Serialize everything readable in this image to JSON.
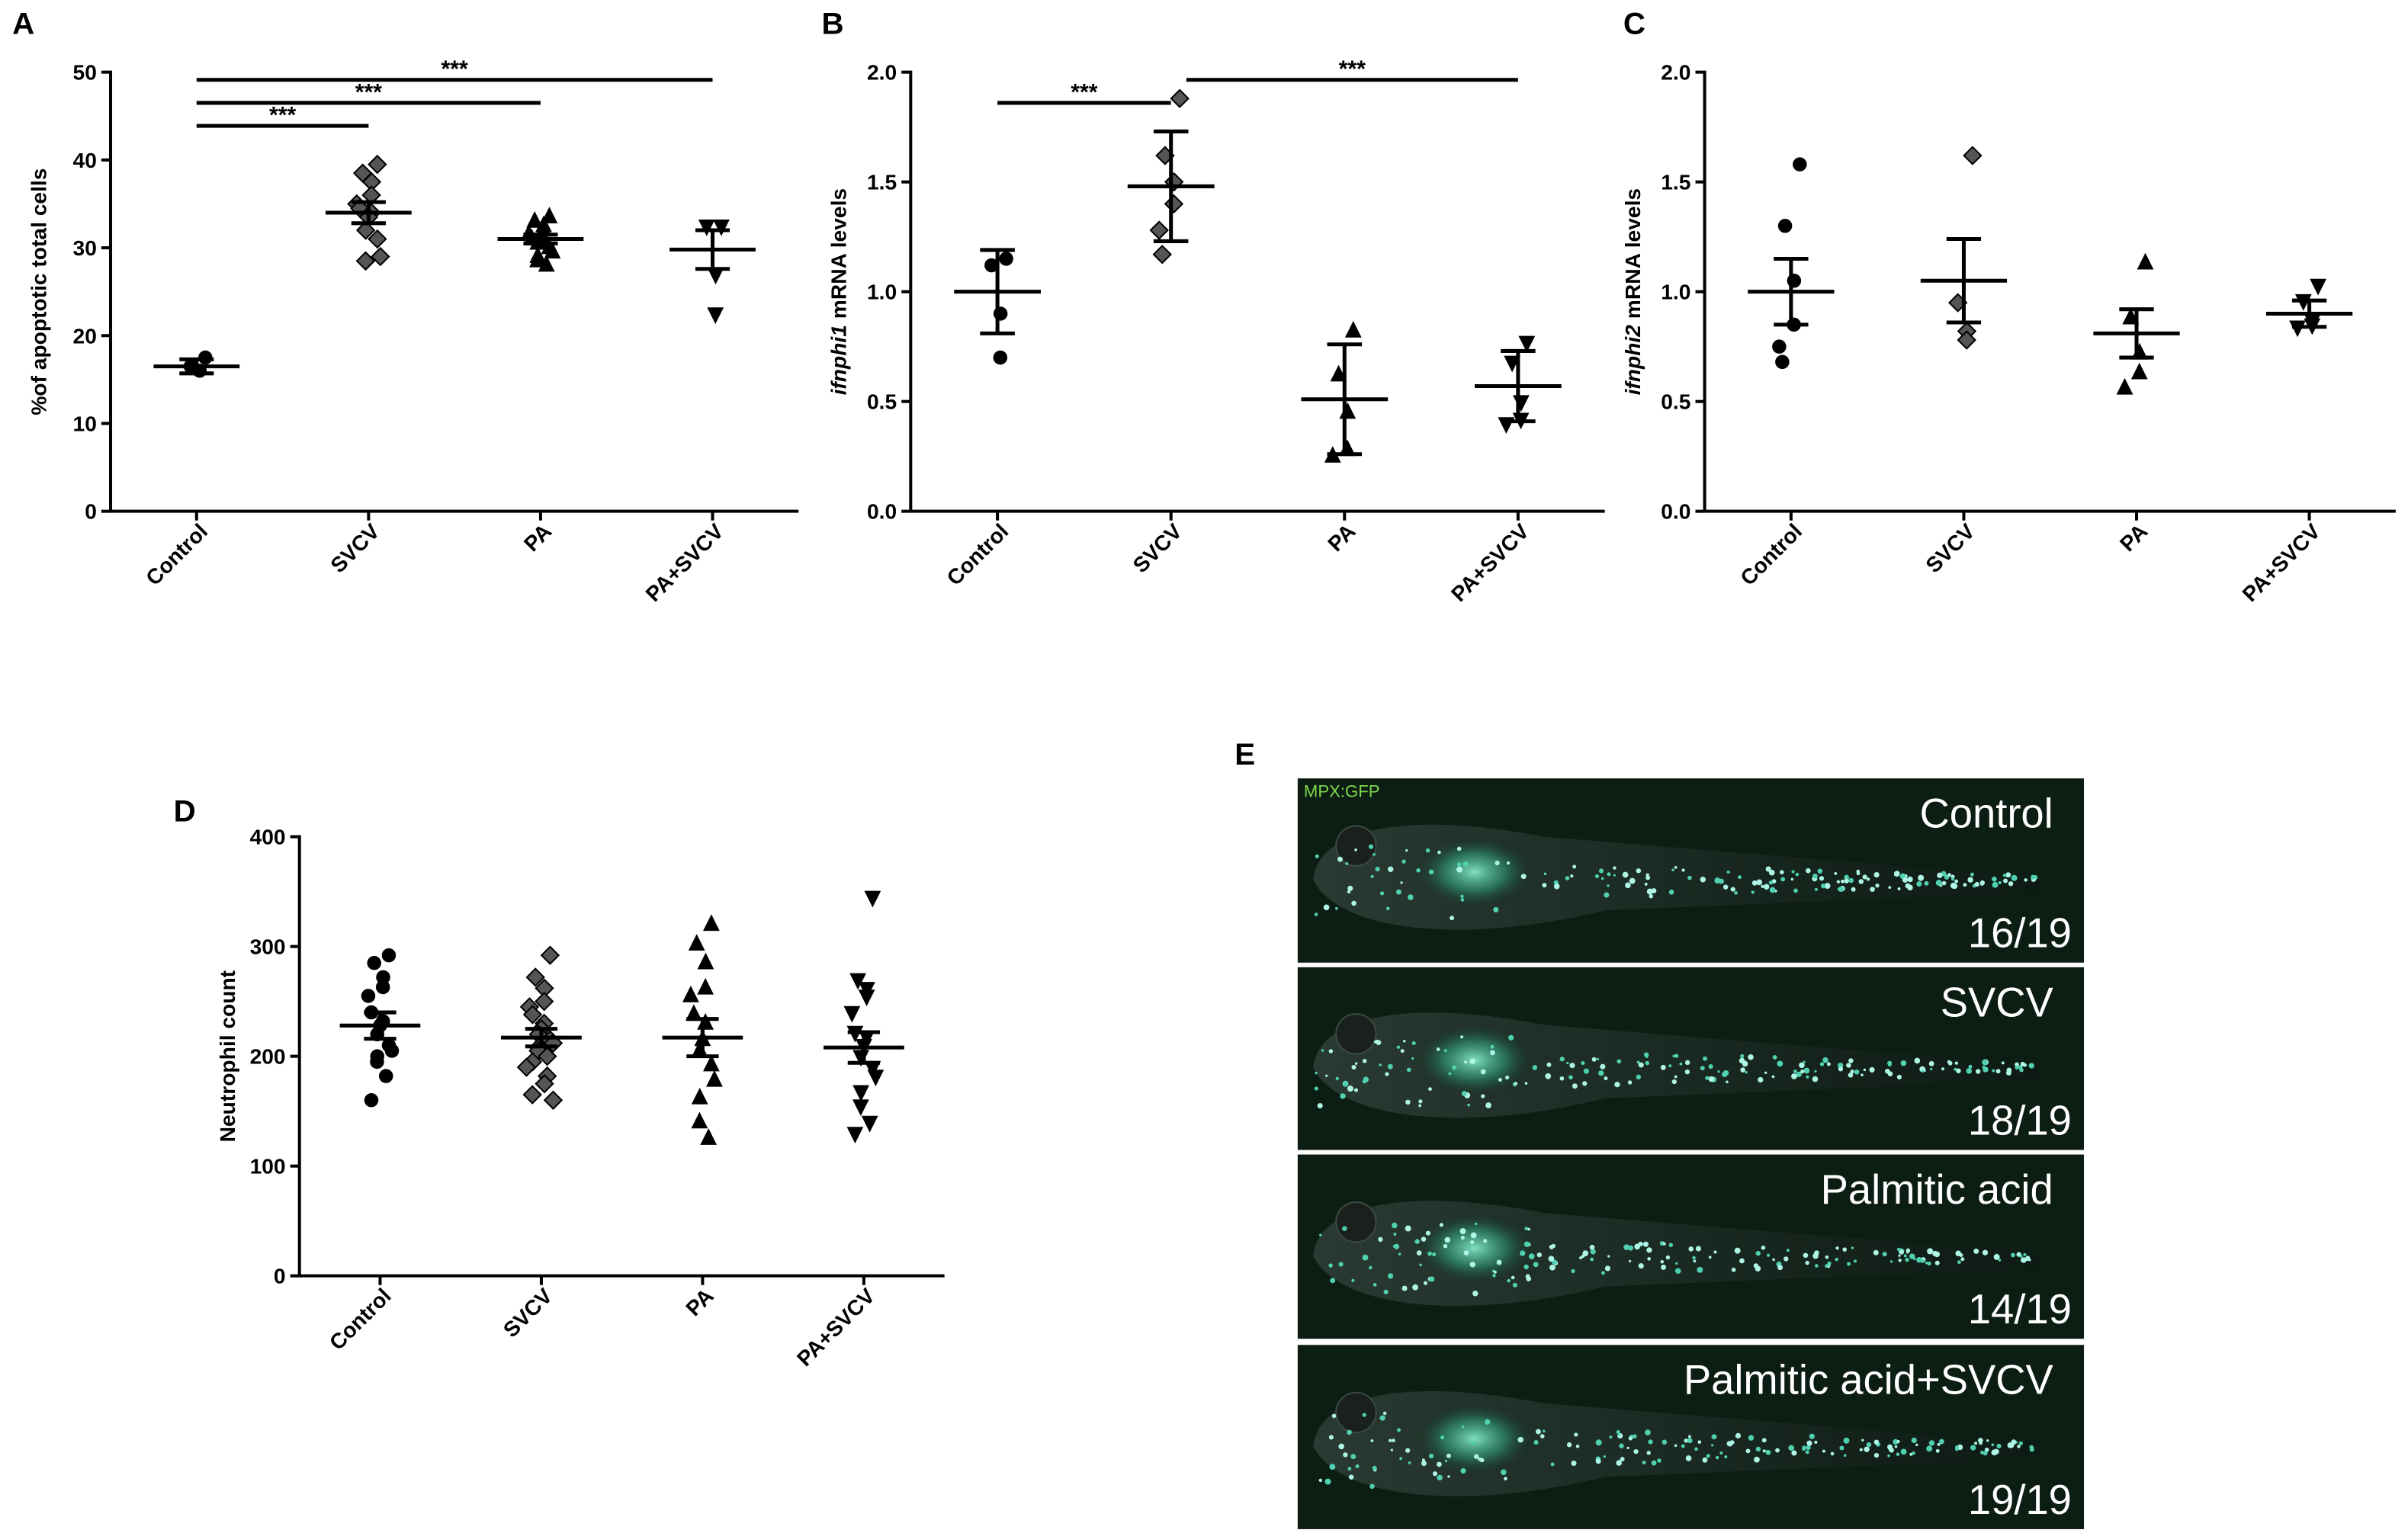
{
  "chart_data": [
    {
      "type": "dot",
      "panel": "A",
      "ylabel": "%of apoptotic total cells",
      "categories": [
        "Control",
        "SVCV",
        "PA",
        "PA+SVCV"
      ],
      "markers": [
        "circle",
        "diamond",
        "triangle",
        "triangle-down"
      ],
      "points": [
        [
          17.5,
          16.5,
          16
        ],
        [
          39.5,
          38.5,
          37.5,
          36,
          35,
          34.5,
          34,
          33.5,
          32,
          31,
          29,
          28.5,
          28.5
        ],
        [
          33.5,
          33,
          32.5,
          32,
          31.5,
          31,
          31,
          30.5,
          30.5,
          30,
          29.5,
          29,
          28.5,
          28
        ],
        [
          32.5,
          32.5,
          27,
          22.5
        ]
      ],
      "means": [
        16.5,
        34,
        31,
        29.8
      ],
      "errors": [
        0.8,
        1.2,
        0.5,
        2.2
      ],
      "ylim": [
        0,
        50
      ],
      "yticks": [
        0,
        10,
        20,
        30,
        40,
        50
      ],
      "annotations": [
        {
          "text": "***",
          "from": "Control",
          "to": "SVCV"
        },
        {
          "text": "***",
          "from": "Control",
          "to": "PA"
        },
        {
          "text": "***",
          "from": "Control",
          "to": "PA+SVCV"
        }
      ]
    },
    {
      "type": "dot",
      "panel": "B",
      "ylabel_italic": "ifnphi1",
      "ylabel": "mRNA levels",
      "categories": [
        "Control",
        "SVCV",
        "PA",
        "PA+SVCV"
      ],
      "markers": [
        "circle",
        "diamond",
        "triangle",
        "triangle-down"
      ],
      "points": [
        [
          1.15,
          1.12,
          0.9,
          0.7
        ],
        [
          1.88,
          1.62,
          1.5,
          1.4,
          1.28,
          1.17
        ],
        [
          0.82,
          0.62,
          0.45,
          0.28,
          0.25
        ],
        [
          0.77,
          0.68,
          0.5,
          0.42,
          0.4
        ]
      ],
      "means": [
        1.0,
        1.48,
        0.51,
        0.57
      ],
      "errors": [
        0.19,
        0.25,
        0.25,
        0.16
      ],
      "ylim": [
        0,
        2
      ],
      "yticks": [
        {
          "value": 0,
          "label": "0.0"
        },
        0.5,
        {
          "value": 1,
          "label": "1.0"
        },
        1.5,
        {
          "value": 2,
          "label": "2.0"
        }
      ],
      "annotations": [
        {
          "text": "***",
          "from": "Control",
          "to": "SVCV"
        },
        {
          "text": "***",
          "from": "SVCV",
          "to": "PA+SVCV"
        }
      ]
    },
    {
      "type": "dot",
      "panel": "C",
      "ylabel_italic": "ifnphi2",
      "ylabel": "mRNA levels",
      "categories": [
        "Control",
        "SVCV",
        "PA",
        "PA+SVCV"
      ],
      "markers": [
        "circle",
        "diamond",
        "triangle",
        "triangle-down"
      ],
      "points": [
        [
          1.58,
          1.3,
          1.05,
          0.85,
          0.75,
          0.68
        ],
        [
          1.62,
          0.95,
          0.82,
          0.78
        ],
        [
          1.13,
          0.88,
          0.72,
          0.63,
          0.56
        ],
        [
          1.03,
          0.96,
          0.87,
          0.85,
          0.84
        ]
      ],
      "means": [
        1.0,
        1.05,
        0.81,
        0.9
      ],
      "errors": [
        0.15,
        0.19,
        0.11,
        0.06
      ],
      "ylim": [
        0,
        2
      ],
      "yticks": [
        {
          "value": 0,
          "label": "0.0"
        },
        0.5,
        {
          "value": 1,
          "label": "1.0"
        },
        1.5,
        {
          "value": 2,
          "label": "2.0"
        }
      ]
    },
    {
      "type": "dot",
      "panel": "D",
      "ylabel": "Neutrophil count",
      "categories": [
        "Control",
        "SVCV",
        "PA",
        "PA+SVCV"
      ],
      "markers": [
        "circle",
        "diamond",
        "triangle",
        "triangle-down"
      ],
      "points": [
        [
          292,
          285,
          272,
          263,
          255,
          240,
          232,
          228,
          220,
          210,
          205,
          200,
          195,
          182,
          160
        ],
        [
          292,
          272,
          262,
          250,
          245,
          238,
          230,
          225,
          220,
          215,
          212,
          208,
          205,
          200,
          195,
          190,
          182,
          175,
          165,
          160
        ],
        [
          320,
          302,
          285,
          262,
          255,
          238,
          230,
          215,
          205,
          192,
          178,
          162,
          140,
          125
        ],
        [
          345,
          270,
          262,
          255,
          240,
          222,
          218,
          210,
          200,
          190,
          182,
          168,
          155,
          140,
          130
        ]
      ],
      "means": [
        228,
        217,
        217,
        208
      ],
      "errors": [
        12,
        8,
        17,
        14
      ],
      "ylim": [
        0,
        400
      ],
      "yticks": [
        0,
        100,
        200,
        300,
        400
      ]
    }
  ],
  "panel_e": {
    "panel": "E",
    "reporter": "MPX:GFP",
    "images": [
      {
        "label": "Control",
        "ratio": "16/19"
      },
      {
        "label": "SVCV",
        "ratio": "18/19"
      },
      {
        "label": "Palmitic acid",
        "ratio": "14/19"
      },
      {
        "label": "Palmitic acid+SVCV",
        "ratio": "19/19"
      }
    ]
  }
}
